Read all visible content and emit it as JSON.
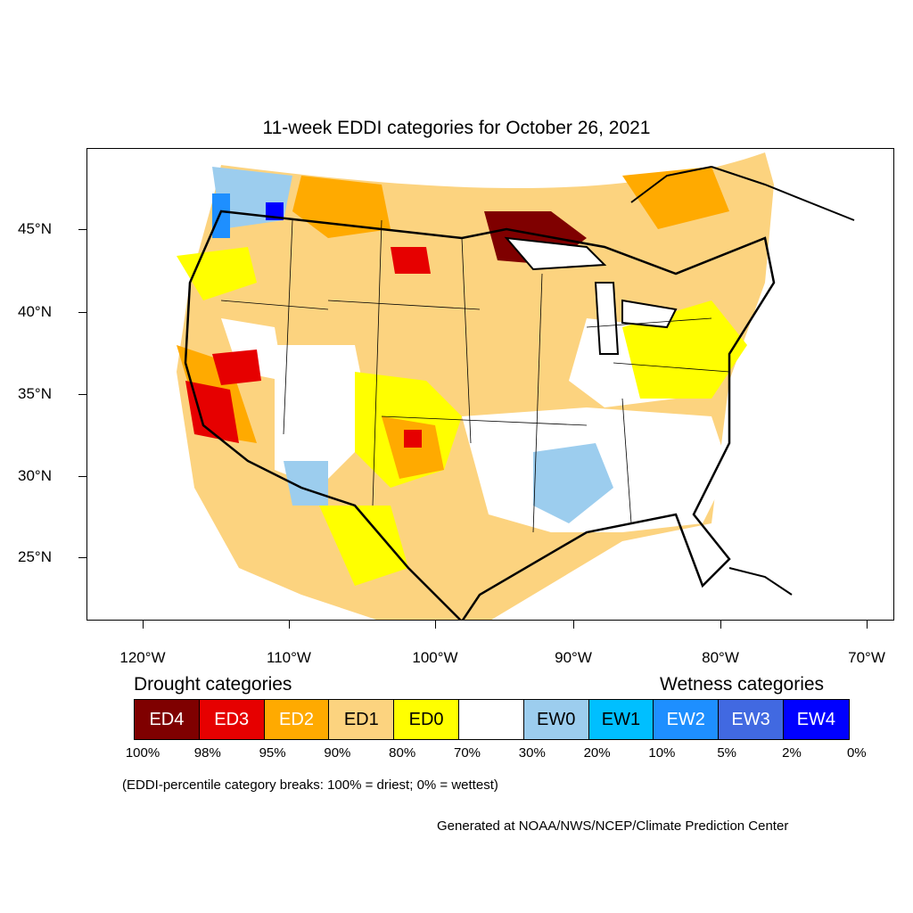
{
  "title": "11-week EDDI categories for October 26, 2021",
  "lat_labels": [
    "45°N",
    "40°N",
    "35°N",
    "30°N",
    "25°N"
  ],
  "lon_labels": [
    "120°W",
    "110°W",
    "100°W",
    "90°W",
    "80°W",
    "70°W"
  ],
  "legend": {
    "drought_heading": "Drought categories",
    "wetness_heading": "Wetness categories",
    "categories": [
      {
        "label": "ED4",
        "color": "#7f0000",
        "text_color": "#ffffff"
      },
      {
        "label": "ED3",
        "color": "#e60000",
        "text_color": "#ffffff"
      },
      {
        "label": "ED2",
        "color": "#ffaa00",
        "text_color": "#ffffff"
      },
      {
        "label": "ED1",
        "color": "#fcd37f",
        "text_color": "#000000"
      },
      {
        "label": "ED0",
        "color": "#ffff00",
        "text_color": "#000000"
      },
      {
        "label": "",
        "color": "#ffffff",
        "text_color": "#000000"
      },
      {
        "label": "EW0",
        "color": "#9ccdee",
        "text_color": "#000000"
      },
      {
        "label": "EW1",
        "color": "#00bfff",
        "text_color": "#000000"
      },
      {
        "label": "EW2",
        "color": "#1e8fff",
        "text_color": "#ffffff"
      },
      {
        "label": "EW3",
        "color": "#4169e1",
        "text_color": "#ffffff"
      },
      {
        "label": "EW4",
        "color": "#0000ff",
        "text_color": "#ffffff"
      }
    ],
    "breaks": [
      "100%",
      "98%",
      "95%",
      "90%",
      "80%",
      "70%",
      "30%",
      "20%",
      "10%",
      "5%",
      "2%",
      "0%"
    ]
  },
  "note": "(EDDI-percentile category breaks: 100% = driest; 0% = wettest)",
  "credit": "Generated at NOAA/NWS/NCEP/Climate Prediction Center"
}
